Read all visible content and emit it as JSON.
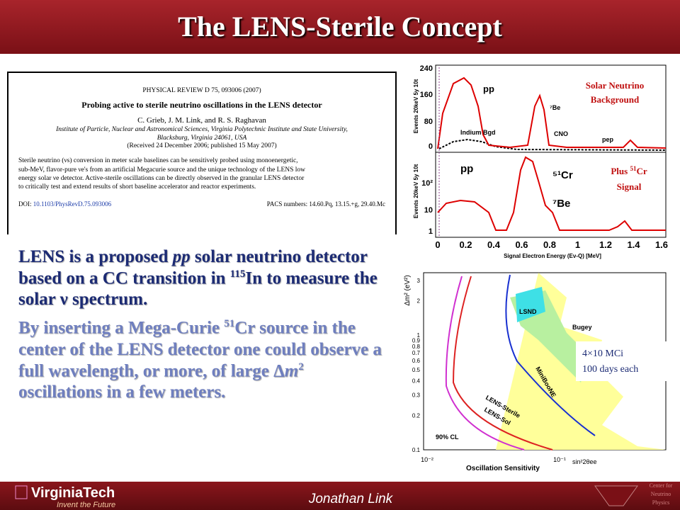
{
  "header": {
    "title": "The LENS-Sterile Concept"
  },
  "paper": {
    "journal": "PHYSICAL REVIEW D 75, 093006 (2007)",
    "title": "Probing active to sterile neutrino oscillations in the LENS detector",
    "authors": "C. Grieb, J. M. Link, and R. S. Raghavan",
    "affiliation": [
      "Institute of Particle, Nuclear and Astronomical Sciences, Virginia Polytechnic Institute and State University,",
      "Blacksburg, Virginia 24061, USA"
    ],
    "received": "(Received 24 December 2006; published 15 May 2007)",
    "abstract": [
      "Sterile neutrino (νs) conversion in meter scale baselines can be sensitively probed using monoenergetic,",
      "sub-MeV, flavor-pure νe's from an artificial Megacurie source and the unique technology of the LENS low",
      "energy solar νe detector. Active-sterile oscillations can be directly observed in the granular LENS detector",
      "to critically test and extend results of short baseline accelerator and reactor experiments."
    ],
    "doi_label": "DOI:",
    "doi": "10.1103/PhysRevD.75.093006",
    "pacs": "PACS numbers: 14.60.Pq, 13.15.+g, 29.40.Mc"
  },
  "body": {
    "paragraph1": [
      "LENS is a proposed ",
      "pp",
      " solar neutrino detector based on a CC transition in ",
      "115",
      "In to measure the solar ν spectrum."
    ],
    "paragraph2": [
      "By inserting a Mega-Curie ",
      "51",
      "Cr source in the center of the LENS detector one could observe a full wavelength, or more, of large Δ",
      "m",
      "2",
      " oscillations in a few meters."
    ]
  },
  "spectrum_plot": {
    "y_label": "Events 20keV 5y 10t",
    "upper_yticks": [
      "240",
      "160",
      "80",
      "0"
    ],
    "lower_yticks": [
      "1",
      "10",
      "10²"
    ],
    "xticks": [
      "0",
      "0.2",
      "0.4",
      "0.6",
      "0.8",
      "1",
      "1.2",
      "1.4",
      "1.6"
    ],
    "x_label": "Signal Electron Energy (Eν-Q) [MeV]",
    "upper_labels": [
      "pp",
      "Indium Bgd",
      "⁷Be",
      "CNO",
      "pep"
    ],
    "lower_labels": [
      "pp",
      "⁵¹Cr",
      "⁷Be"
    ],
    "note_background": [
      "Solar Neutrino",
      "Background"
    ],
    "note_signal": [
      "Plus ",
      "51",
      "Cr",
      "Signal"
    ]
  },
  "sensitivity_plot": {
    "y_label": "Δm² (eV²)",
    "yticks": [
      "3",
      "2",
      "1",
      "0.9",
      "0.8",
      "0.7",
      "0.6",
      "0.5",
      "0.4",
      "0.3",
      "0.2",
      "0.1"
    ],
    "xticks": [
      "10⁻²",
      "10⁻¹"
    ],
    "x_unit": "sin²2θee",
    "x_label": "Oscillation Sensitivity",
    "region_labels": [
      "LSND",
      "Bugey",
      "MiniBooNE",
      "LENS-Sterile",
      "LENS-Sol",
      "90% CL"
    ],
    "note": [
      "4×10 MCi",
      "100 days each"
    ]
  },
  "footer": {
    "logo": "VirginiaTech",
    "tagline": "Invent the Future",
    "presenter": "Jonathan Link",
    "center": [
      "Center for",
      "Neutrino",
      "Physics"
    ]
  }
}
